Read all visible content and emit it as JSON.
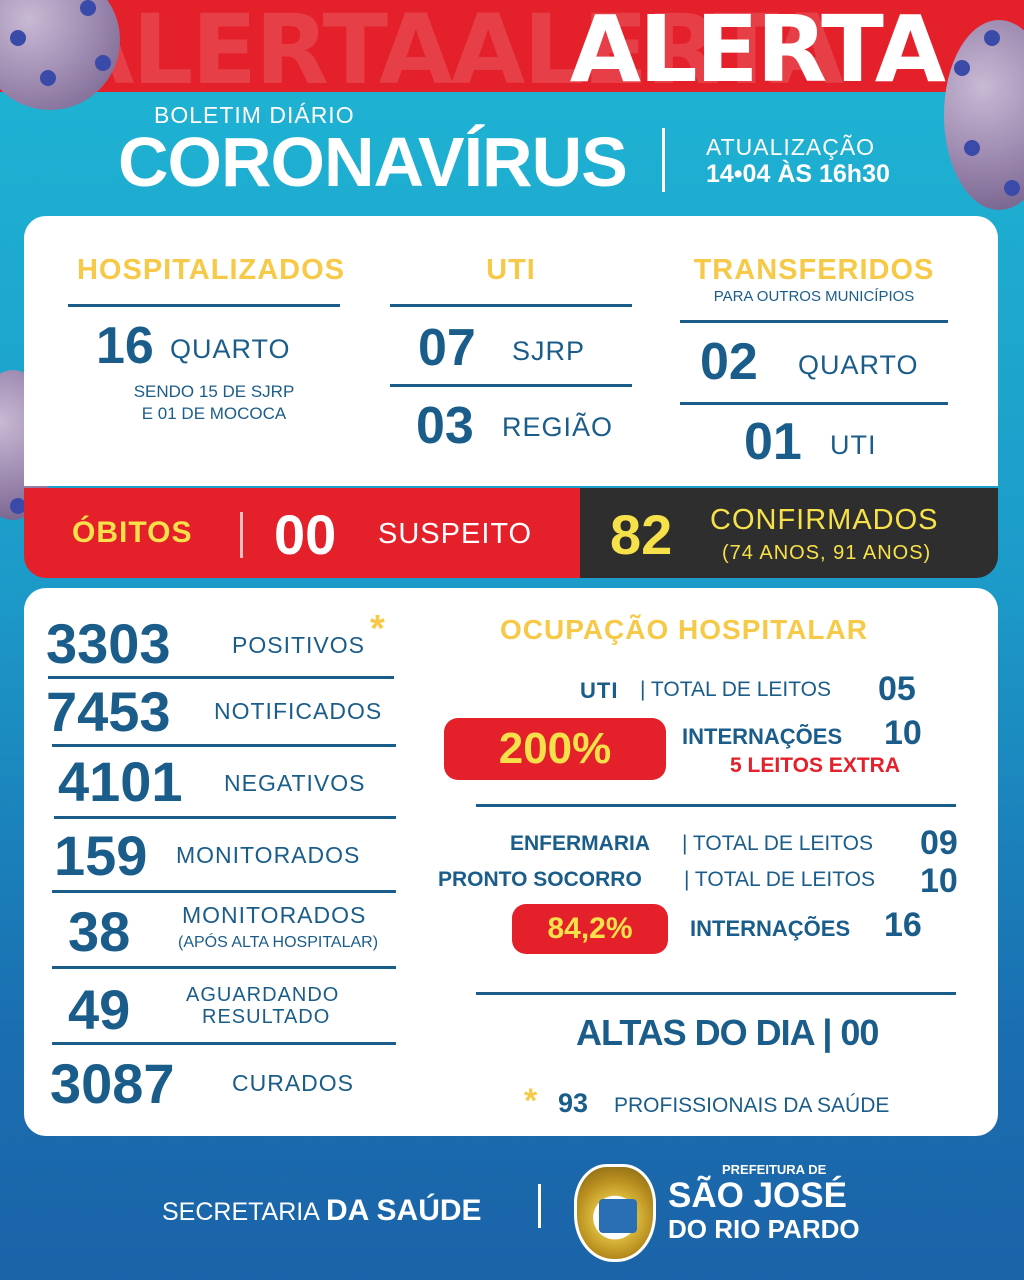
{
  "header": {
    "alert_ghost": "ALERTAALERTA",
    "alert": "ALERTA",
    "boletim": "BOLETIM DIÁRIO",
    "title": "CORONAVÍRUS",
    "update_label": "ATUALIZAÇÃO",
    "update_value": "14•04 ÀS 16h30"
  },
  "hospitalizados": {
    "title": "HOSPITALIZADOS",
    "number": "16",
    "unit": "QUARTO",
    "note_line1": "SENDO 15 DE SJRP",
    "note_line2": "E 01 DE MOCOCA"
  },
  "uti": {
    "title": "UTI",
    "row1_number": "07",
    "row1_label": "SJRP",
    "row2_number": "03",
    "row2_label": "REGIÃO"
  },
  "transferidos": {
    "title": "TRANSFERIDOS",
    "subtitle": "PARA OUTROS MUNICÍPIOS",
    "row1_number": "02",
    "row1_label": "QUARTO",
    "row2_number": "01",
    "row2_label": "UTI"
  },
  "obitos": {
    "title": "ÓBITOS",
    "suspeito_number": "00",
    "suspeito_label": "SUSPEITO",
    "confirmados_number": "82",
    "confirmados_label": "CONFIRMADOS",
    "confirmados_note": "(74 ANOS, 91 ANOS)"
  },
  "stats": [
    {
      "number": "3303",
      "label": "POSITIVOS",
      "label2": ""
    },
    {
      "number": "7453",
      "label": "NOTIFICADOS",
      "label2": ""
    },
    {
      "number": "4101",
      "label": "NEGATIVOS",
      "label2": ""
    },
    {
      "number": "159",
      "label": "MONITORADOS",
      "label2": ""
    },
    {
      "number": "38",
      "label": "MONITORADOS",
      "label2": "(APÓS ALTA HOSPITALAR)"
    },
    {
      "number": "49",
      "label": "AGUARDANDO",
      "label2": "RESULTADO"
    },
    {
      "number": "3087",
      "label": "CURADOS",
      "label2": ""
    }
  ],
  "asterisk": "*",
  "ocupacao": {
    "title": "OCUPAÇÃO HOSPITALAR",
    "uti_label": "UTI",
    "uti_total_label": "| TOTAL DE LEITOS",
    "uti_total": "05",
    "uti_percent": "200%",
    "uti_intern_label": "INTERNAÇÕES",
    "uti_intern": "10",
    "uti_extra": "5 LEITOS EXTRA",
    "enf_label": "ENFERMARIA",
    "enf_total_label": "| TOTAL DE LEITOS",
    "enf_total": "09",
    "ps_label": "PRONTO SOCORRO",
    "ps_total_label": "| TOTAL DE LEITOS",
    "ps_total": "10",
    "enf_percent": "84,2%",
    "enf_intern_label": "INTERNAÇÕES",
    "enf_intern": "16",
    "altas": "ALTAS DO DIA | 00",
    "prof_number": "93",
    "prof_label": "PROFISSIONAIS DA SAÚDE"
  },
  "footer": {
    "secretaria": "SECRETARIA",
    "da_saude": "DA SAÚDE",
    "prefeitura": "PREFEITURA DE",
    "city1": "SÃO JOSÉ",
    "city2": "DO RIO PARDO"
  },
  "colors": {
    "red": "#e4202a",
    "yellow": "#f7c948",
    "navy": "#1b5d8a",
    "dark": "#2e2e2e"
  }
}
